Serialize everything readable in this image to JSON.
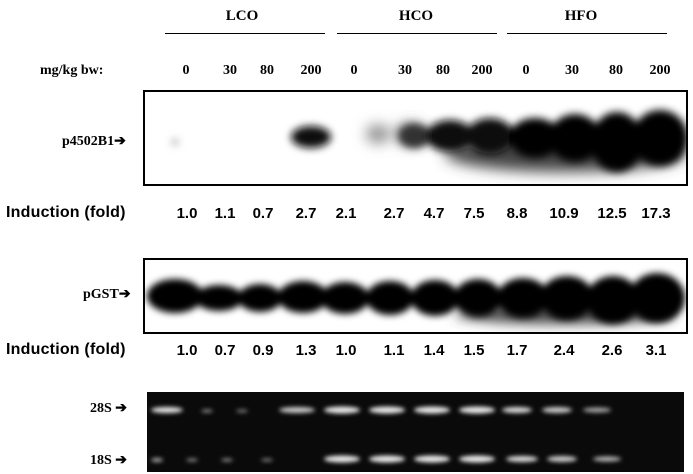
{
  "groups": [
    "LCO",
    "HCO",
    "HFO"
  ],
  "dose_label": "mg/kg bw:",
  "doses": [
    "0",
    "30",
    "80",
    "200",
    "0",
    "30",
    "80",
    "200",
    "0",
    "30",
    "80",
    "200"
  ],
  "blot1": {
    "label": "p4502B1",
    "induction_label": "Induction (fold)",
    "values": [
      "1.0",
      "1.1",
      "0.7",
      "2.7",
      "2.1",
      "2.7",
      "4.7",
      "7.5",
      "8.8",
      "10.9",
      "12.5",
      "17.3"
    ]
  },
  "blot2": {
    "label": "pGST",
    "induction_label": "Induction (fold)",
    "values": [
      "1.0",
      "0.7",
      "0.9",
      "1.3",
      "1.0",
      "1.1",
      "1.4",
      "1.5",
      "1.7",
      "2.4",
      "2.6",
      "3.1"
    ]
  },
  "rrna": {
    "label_28s": "28S",
    "label_18s": "18S"
  },
  "arrow": "➔"
}
